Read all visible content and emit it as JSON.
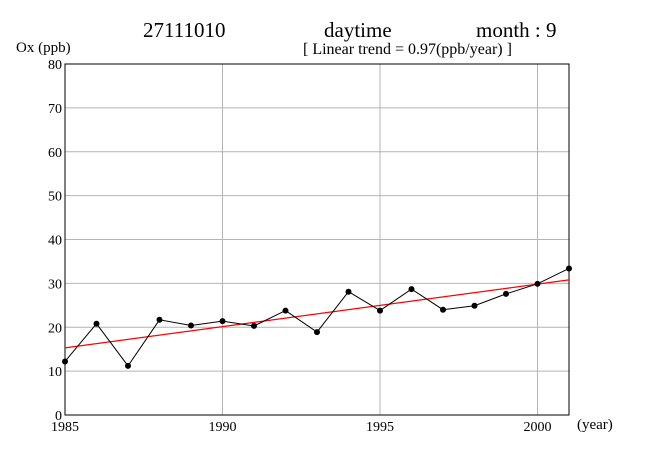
{
  "header": {
    "station": "27111010",
    "period": "daytime",
    "month_label": "month : 9",
    "trend_label": "[ Linear trend = 0.97(ppb/year) ]"
  },
  "chart_data": {
    "type": "line",
    "ylabel": "Ox (ppb)",
    "xlabel": "(year)",
    "xlim": [
      1985,
      2001
    ],
    "ylim": [
      0,
      80
    ],
    "x_ticks": [
      1985,
      1990,
      1995,
      2000
    ],
    "y_ticks": [
      0,
      10,
      20,
      30,
      40,
      50,
      60,
      70,
      80
    ],
    "grid": true,
    "x": [
      1985,
      1986,
      1987,
      1988,
      1989,
      1990,
      1991,
      1992,
      1993,
      1994,
      1995,
      1996,
      1997,
      1998,
      1999,
      2000,
      2001
    ],
    "series": [
      {
        "values": [
          12.2,
          20.8,
          11.2,
          21.7,
          20.4,
          21.4,
          20.3,
          23.8,
          18.9,
          28.1,
          23.8,
          28.7,
          24.0,
          24.9,
          27.6,
          29.9,
          33.4
        ],
        "color": "#000000"
      }
    ],
    "trend_line": {
      "slope": 0.97,
      "x": [
        1985,
        2001
      ],
      "y": [
        15.3,
        30.8
      ],
      "color": "#ff0000"
    }
  }
}
